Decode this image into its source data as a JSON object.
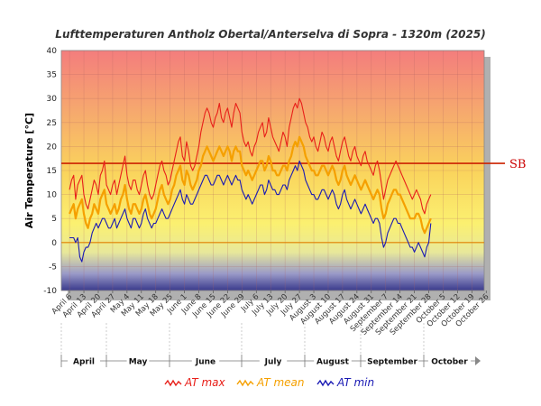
{
  "chart_data": {
    "type": "line",
    "title": "Lufttemperaturen Antholz Obertal/Anterselva di Sopra - 1320m (2025)",
    "ylabel": "Air Temperature [°C]",
    "xlabel": "",
    "ylim": [
      -10,
      40
    ],
    "yticks": [
      -10,
      -5,
      0,
      5,
      10,
      15,
      20,
      25,
      30,
      35,
      40
    ],
    "grid": true,
    "legend_position": "bottom",
    "x_start": "April 6",
    "x_tick_labels": [
      "April 6",
      "April 13",
      "April 20",
      "April 27",
      "May 4",
      "May 11",
      "May 18",
      "May 25",
      "June 1",
      "June 8",
      "June 15",
      "June 22",
      "June 29",
      "July 6",
      "July 13",
      "July 20",
      "July 27",
      "August 3",
      "August 10",
      "August 17",
      "August 24",
      "August 31",
      "September 7",
      "September 14",
      "September 21",
      "September 28",
      "October 5",
      "October 12",
      "October 19",
      "October 26"
    ],
    "months": [
      "April",
      "May",
      "June",
      "July",
      "August",
      "September",
      "October"
    ],
    "reference_lines": [
      {
        "label": "SB",
        "value": 16.5,
        "color": "#cc2200"
      },
      {
        "label": "",
        "value": 0,
        "color": "#e08000"
      }
    ],
    "series": [
      {
        "name": "AT max",
        "color": "#e8201a",
        "values": [
          11,
          13,
          14,
          9,
          12,
          13,
          14,
          10,
          8,
          7,
          9,
          11,
          13,
          12,
          10,
          14,
          15,
          17,
          12,
          11,
          10,
          12,
          13,
          10,
          12,
          14,
          16,
          18,
          14,
          12,
          11,
          13,
          13,
          11,
          10,
          12,
          14,
          15,
          12,
          10,
          9,
          10,
          12,
          14,
          16,
          17,
          15,
          14,
          12,
          13,
          15,
          17,
          19,
          21,
          22,
          18,
          17,
          21,
          19,
          16,
          15,
          16,
          18,
          20,
          23,
          25,
          27,
          28,
          27,
          25,
          24,
          26,
          27,
          29,
          26,
          25,
          27,
          28,
          26,
          24,
          27,
          29,
          28,
          27,
          23,
          21,
          20,
          21,
          19,
          18,
          20,
          21,
          23,
          24,
          25,
          22,
          23,
          26,
          24,
          22,
          21,
          20,
          19,
          21,
          23,
          22,
          20,
          24,
          26,
          28,
          29,
          28,
          30,
          29,
          27,
          25,
          24,
          22,
          21,
          22,
          20,
          19,
          21,
          23,
          22,
          20,
          19,
          21,
          22,
          20,
          18,
          17,
          19,
          21,
          22,
          20,
          18,
          17,
          19,
          20,
          18,
          17,
          16,
          18,
          19,
          17,
          16,
          15,
          14,
          16,
          17,
          15,
          12,
          9,
          11,
          13,
          14,
          15,
          16,
          17,
          16,
          15,
          14,
          13,
          12,
          11,
          10,
          9,
          10,
          11,
          10,
          9,
          7,
          6,
          8,
          9,
          10
        ]
      },
      {
        "name": "AT mean",
        "color": "#f5a000",
        "values": [
          6,
          7,
          8,
          5,
          7,
          8,
          9,
          6,
          4,
          3,
          5,
          6,
          8,
          7,
          6,
          9,
          10,
          11,
          8,
          7,
          6,
          7,
          8,
          6,
          7,
          9,
          10,
          12,
          9,
          7,
          6,
          8,
          8,
          7,
          6,
          7,
          9,
          10,
          8,
          6,
          5,
          6,
          7,
          9,
          11,
          12,
          10,
          9,
          8,
          9,
          11,
          12,
          14,
          15,
          16,
          13,
          12,
          15,
          14,
          12,
          11,
          12,
          13,
          15,
          16,
          18,
          19,
          20,
          19,
          18,
          17,
          18,
          19,
          20,
          19,
          18,
          19,
          20,
          19,
          17,
          19,
          20,
          19,
          19,
          16,
          15,
          14,
          15,
          14,
          13,
          14,
          15,
          16,
          17,
          17,
          15,
          16,
          18,
          17,
          15,
          15,
          14,
          14,
          15,
          16,
          16,
          15,
          17,
          18,
          20,
          21,
          20,
          22,
          21,
          20,
          18,
          17,
          16,
          15,
          15,
          14,
          14,
          15,
          16,
          16,
          15,
          14,
          15,
          16,
          15,
          13,
          12,
          13,
          15,
          16,
          14,
          13,
          12,
          13,
          14,
          13,
          12,
          11,
          12,
          13,
          12,
          11,
          10,
          9,
          10,
          11,
          10,
          7,
          5,
          6,
          8,
          9,
          10,
          11,
          11,
          10,
          10,
          9,
          8,
          7,
          6,
          5,
          5,
          5,
          6,
          6,
          5,
          3,
          2,
          3,
          4,
          5
        ]
      },
      {
        "name": "AT min",
        "color": "#1a1ab4",
        "values": [
          1,
          1,
          1,
          0,
          1,
          -3,
          -4,
          -2,
          -1,
          -1,
          0,
          2,
          3,
          4,
          3,
          4,
          5,
          5,
          4,
          3,
          3,
          4,
          5,
          3,
          4,
          5,
          6,
          7,
          5,
          4,
          3,
          5,
          5,
          4,
          3,
          4,
          6,
          7,
          5,
          4,
          3,
          4,
          4,
          5,
          6,
          7,
          6,
          5,
          5,
          6,
          7,
          8,
          9,
          10,
          11,
          9,
          8,
          10,
          9,
          8,
          8,
          9,
          10,
          11,
          12,
          13,
          14,
          14,
          13,
          12,
          12,
          13,
          14,
          14,
          13,
          12,
          13,
          14,
          13,
          12,
          13,
          14,
          13,
          13,
          11,
          10,
          9,
          10,
          9,
          8,
          9,
          10,
          11,
          12,
          12,
          10,
          11,
          13,
          12,
          11,
          11,
          10,
          10,
          11,
          12,
          12,
          11,
          13,
          14,
          15,
          16,
          15,
          17,
          16,
          15,
          13,
          12,
          11,
          10,
          10,
          9,
          9,
          10,
          11,
          11,
          10,
          9,
          10,
          11,
          10,
          8,
          7,
          8,
          10,
          11,
          9,
          8,
          7,
          8,
          9,
          8,
          7,
          6,
          7,
          8,
          7,
          6,
          5,
          4,
          5,
          5,
          4,
          1,
          -1,
          0,
          2,
          3,
          4,
          5,
          5,
          4,
          4,
          3,
          2,
          1,
          0,
          -1,
          -1,
          -2,
          -1,
          0,
          -1,
          -2,
          -3,
          -1,
          0,
          4
        ]
      }
    ]
  }
}
